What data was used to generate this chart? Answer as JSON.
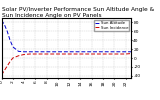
{
  "title": "Solar PV/Inverter Performance Sun Altitude Angle & Sun Incidence Angle on PV Panels",
  "background_color": "#ffffff",
  "grid_color": "#c8c8c8",
  "x_values": [
    0,
    0.5,
    1,
    1.5,
    2,
    3,
    4,
    5,
    6,
    7,
    8,
    9,
    10,
    11,
    12,
    13,
    14,
    15,
    16,
    17,
    18,
    19,
    20,
    21,
    22,
    23
  ],
  "alt_y": [
    85,
    75,
    60,
    40,
    25,
    15,
    14,
    14,
    14,
    14,
    14,
    14,
    14,
    14,
    14,
    14,
    14,
    14,
    14,
    14,
    14,
    14,
    14,
    14,
    14,
    14
  ],
  "inc_y": [
    -38,
    -28,
    -18,
    -8,
    0,
    5,
    8,
    9,
    9,
    9,
    9,
    9,
    9,
    9,
    9,
    9,
    9,
    9,
    9,
    9,
    9,
    9,
    9,
    9,
    9,
    10
  ],
  "altitude_color": "#0000cc",
  "incidence_color": "#cc0000",
  "ylim": [
    -45,
    90
  ],
  "xlim": [
    0,
    23
  ],
  "yticks": [
    80,
    60,
    40,
    20,
    0,
    -20,
    -40
  ],
  "xtick_positions": [
    0,
    2,
    4,
    6,
    8,
    10,
    12,
    14,
    16,
    18,
    20,
    22
  ],
  "xtick_labels": [
    "0",
    "2",
    "4",
    "6",
    "8",
    "10",
    "12",
    "14",
    "16",
    "18",
    "20",
    "22"
  ],
  "legend_altitude": "Sun Altitude",
  "legend_incidence": "Sun Incidence",
  "title_fontsize": 4.2,
  "tick_fontsize": 3.2,
  "legend_fontsize": 2.8
}
